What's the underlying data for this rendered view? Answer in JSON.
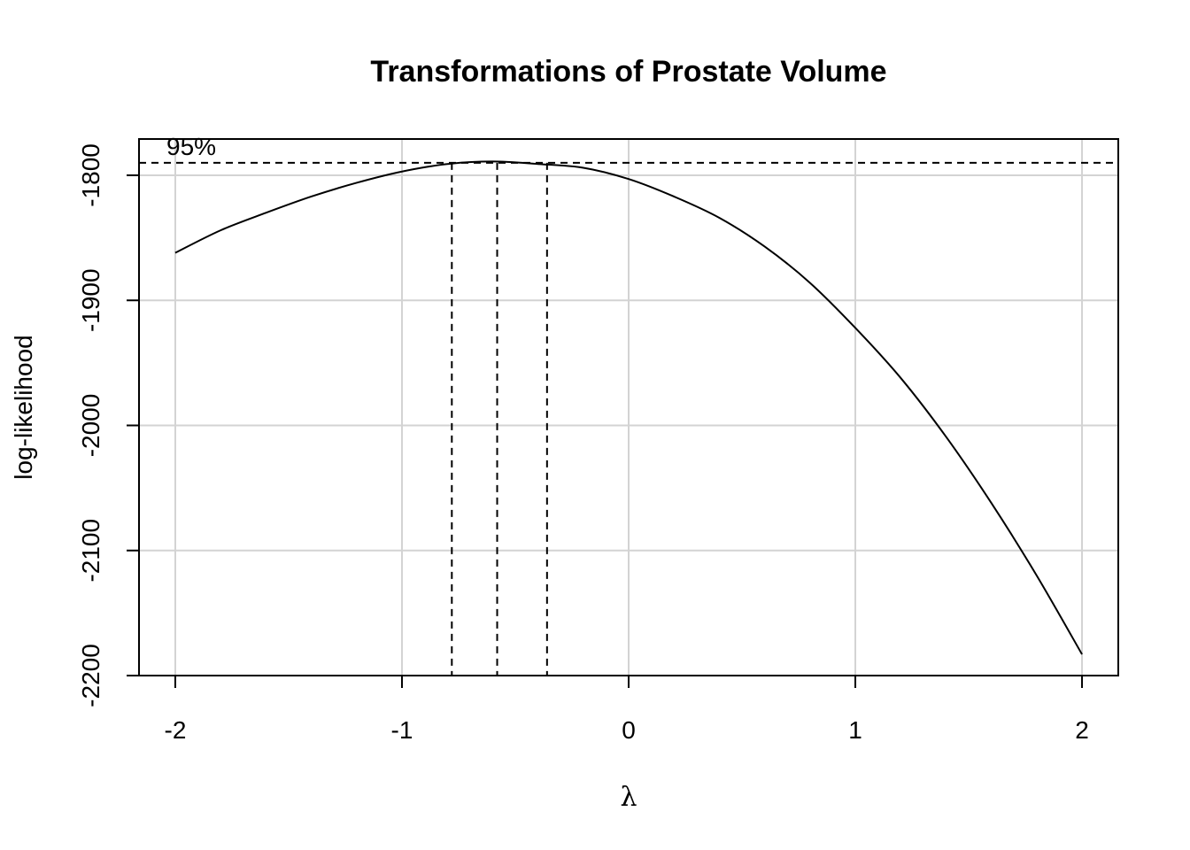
{
  "chart_data": {
    "type": "line",
    "title": "Transformations of Prostate Volume",
    "xlabel": "λ",
    "ylabel": "log-likelihood",
    "xlim": [
      -2.16,
      2.16
    ],
    "ylim": [
      -2200,
      -1771
    ],
    "x_ticks": [
      -2,
      -1,
      0,
      1,
      2
    ],
    "x_tick_labels": [
      "-2",
      "-1",
      "0",
      "1",
      "2"
    ],
    "y_ticks": [
      -2200,
      -2100,
      -2000,
      -1900,
      -1800
    ],
    "y_tick_labels": [
      "-2200",
      "-2100",
      "-2000",
      "-1900",
      "-1800"
    ],
    "grid": true,
    "series": [
      {
        "x": [
          -2.0,
          -1.8,
          -1.6,
          -1.4,
          -1.2,
          -1.0,
          -0.8,
          -0.6,
          -0.4,
          -0.2,
          0.0,
          0.2,
          0.4,
          0.6,
          0.8,
          1.0,
          1.2,
          1.4,
          1.6,
          1.8,
          2.0
        ],
        "y": [
          -1862,
          -1844,
          -1830,
          -1817,
          -1806,
          -1797,
          -1791,
          -1789,
          -1791,
          -1794,
          -1803,
          -1817,
          -1834,
          -1857,
          -1886,
          -1922,
          -1962,
          -2009,
          -2062,
          -2120,
          -2183
        ]
      }
    ],
    "ci": {
      "label": "95%",
      "threshold": -1790,
      "lower": -0.78,
      "mle": -0.58,
      "upper": -0.36
    }
  }
}
